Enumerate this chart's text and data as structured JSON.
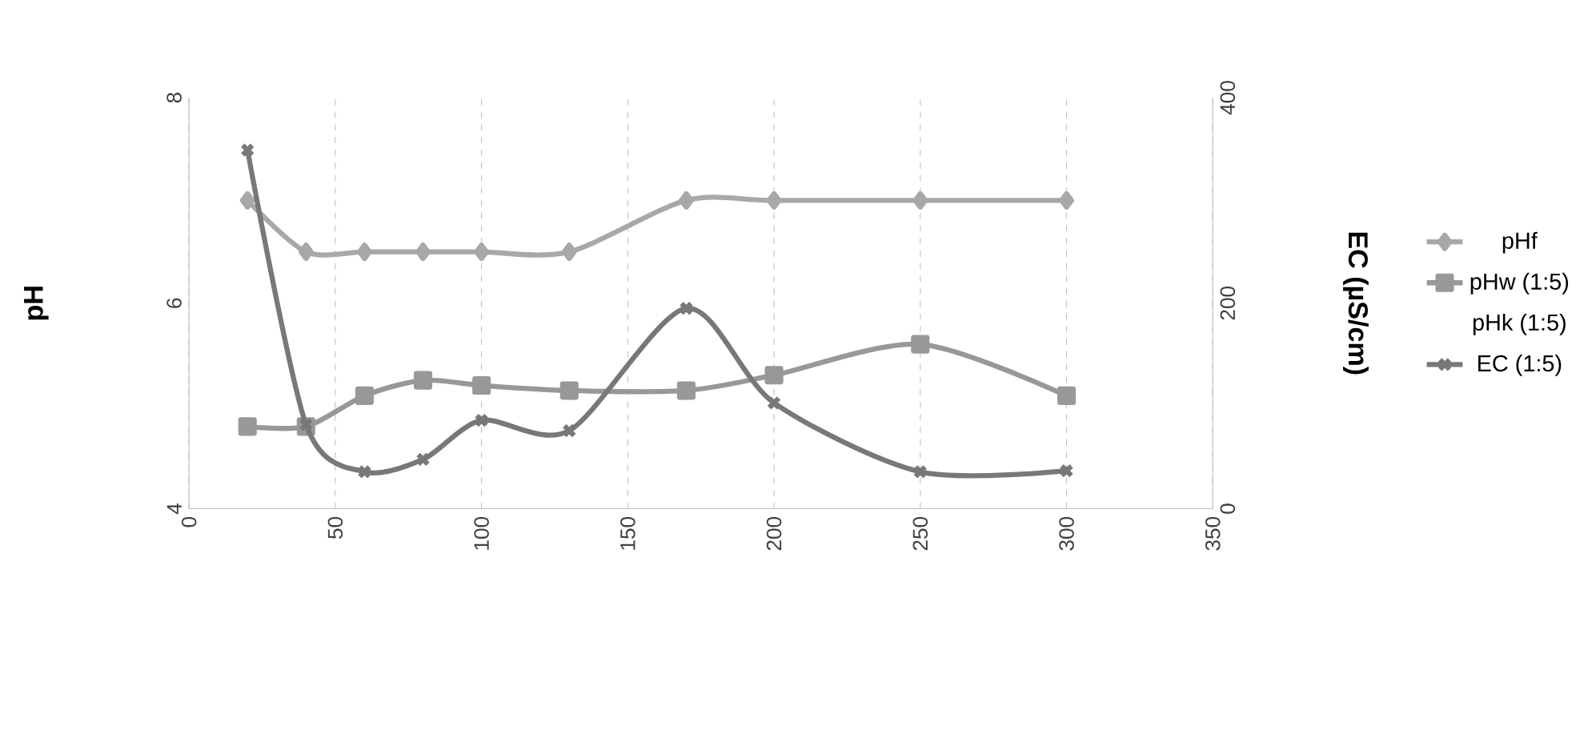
{
  "chart_data": {
    "type": "line",
    "xlim": [
      0,
      350
    ],
    "xticks": [
      0,
      50,
      100,
      150,
      200,
      250,
      300,
      350
    ],
    "ylim": [
      4,
      8
    ],
    "yticks": [
      4,
      6,
      8
    ],
    "y2lim": [
      0,
      400
    ],
    "y2ticks": [
      0,
      200,
      400
    ],
    "ylabel": "pH",
    "y2label": "EC (µS/cm)",
    "grid": "x",
    "legend": "right",
    "line_style": "solid",
    "x": [
      20,
      40,
      60,
      80,
      100,
      130,
      170,
      200,
      250,
      300
    ],
    "series": [
      {
        "name": "pHf",
        "color": "#a8a8a8",
        "marker": "diamond",
        "values": [
          7.0,
          6.5,
          6.5,
          6.5,
          6.5,
          6.5,
          7.0,
          7.0,
          7.0,
          7.0
        ]
      },
      {
        "name": "pHw (1:5)",
        "color": "#989898",
        "marker": "square",
        "values": [
          4.8,
          4.8,
          5.1,
          5.25,
          5.2,
          5.15,
          5.15,
          5.3,
          5.6,
          5.1
        ]
      },
      {
        "name": "pHk (1:5)",
        "values": [
          null,
          null,
          null,
          null,
          null,
          null,
          null,
          null,
          null,
          null
        ]
      },
      {
        "name": "EC (1:5)",
        "color": "#787878",
        "marker": "cross",
        "axis": "y2",
        "values": [
          349,
          82,
          36,
          48,
          86,
          76,
          195,
          103,
          36,
          37
        ]
      }
    ]
  }
}
